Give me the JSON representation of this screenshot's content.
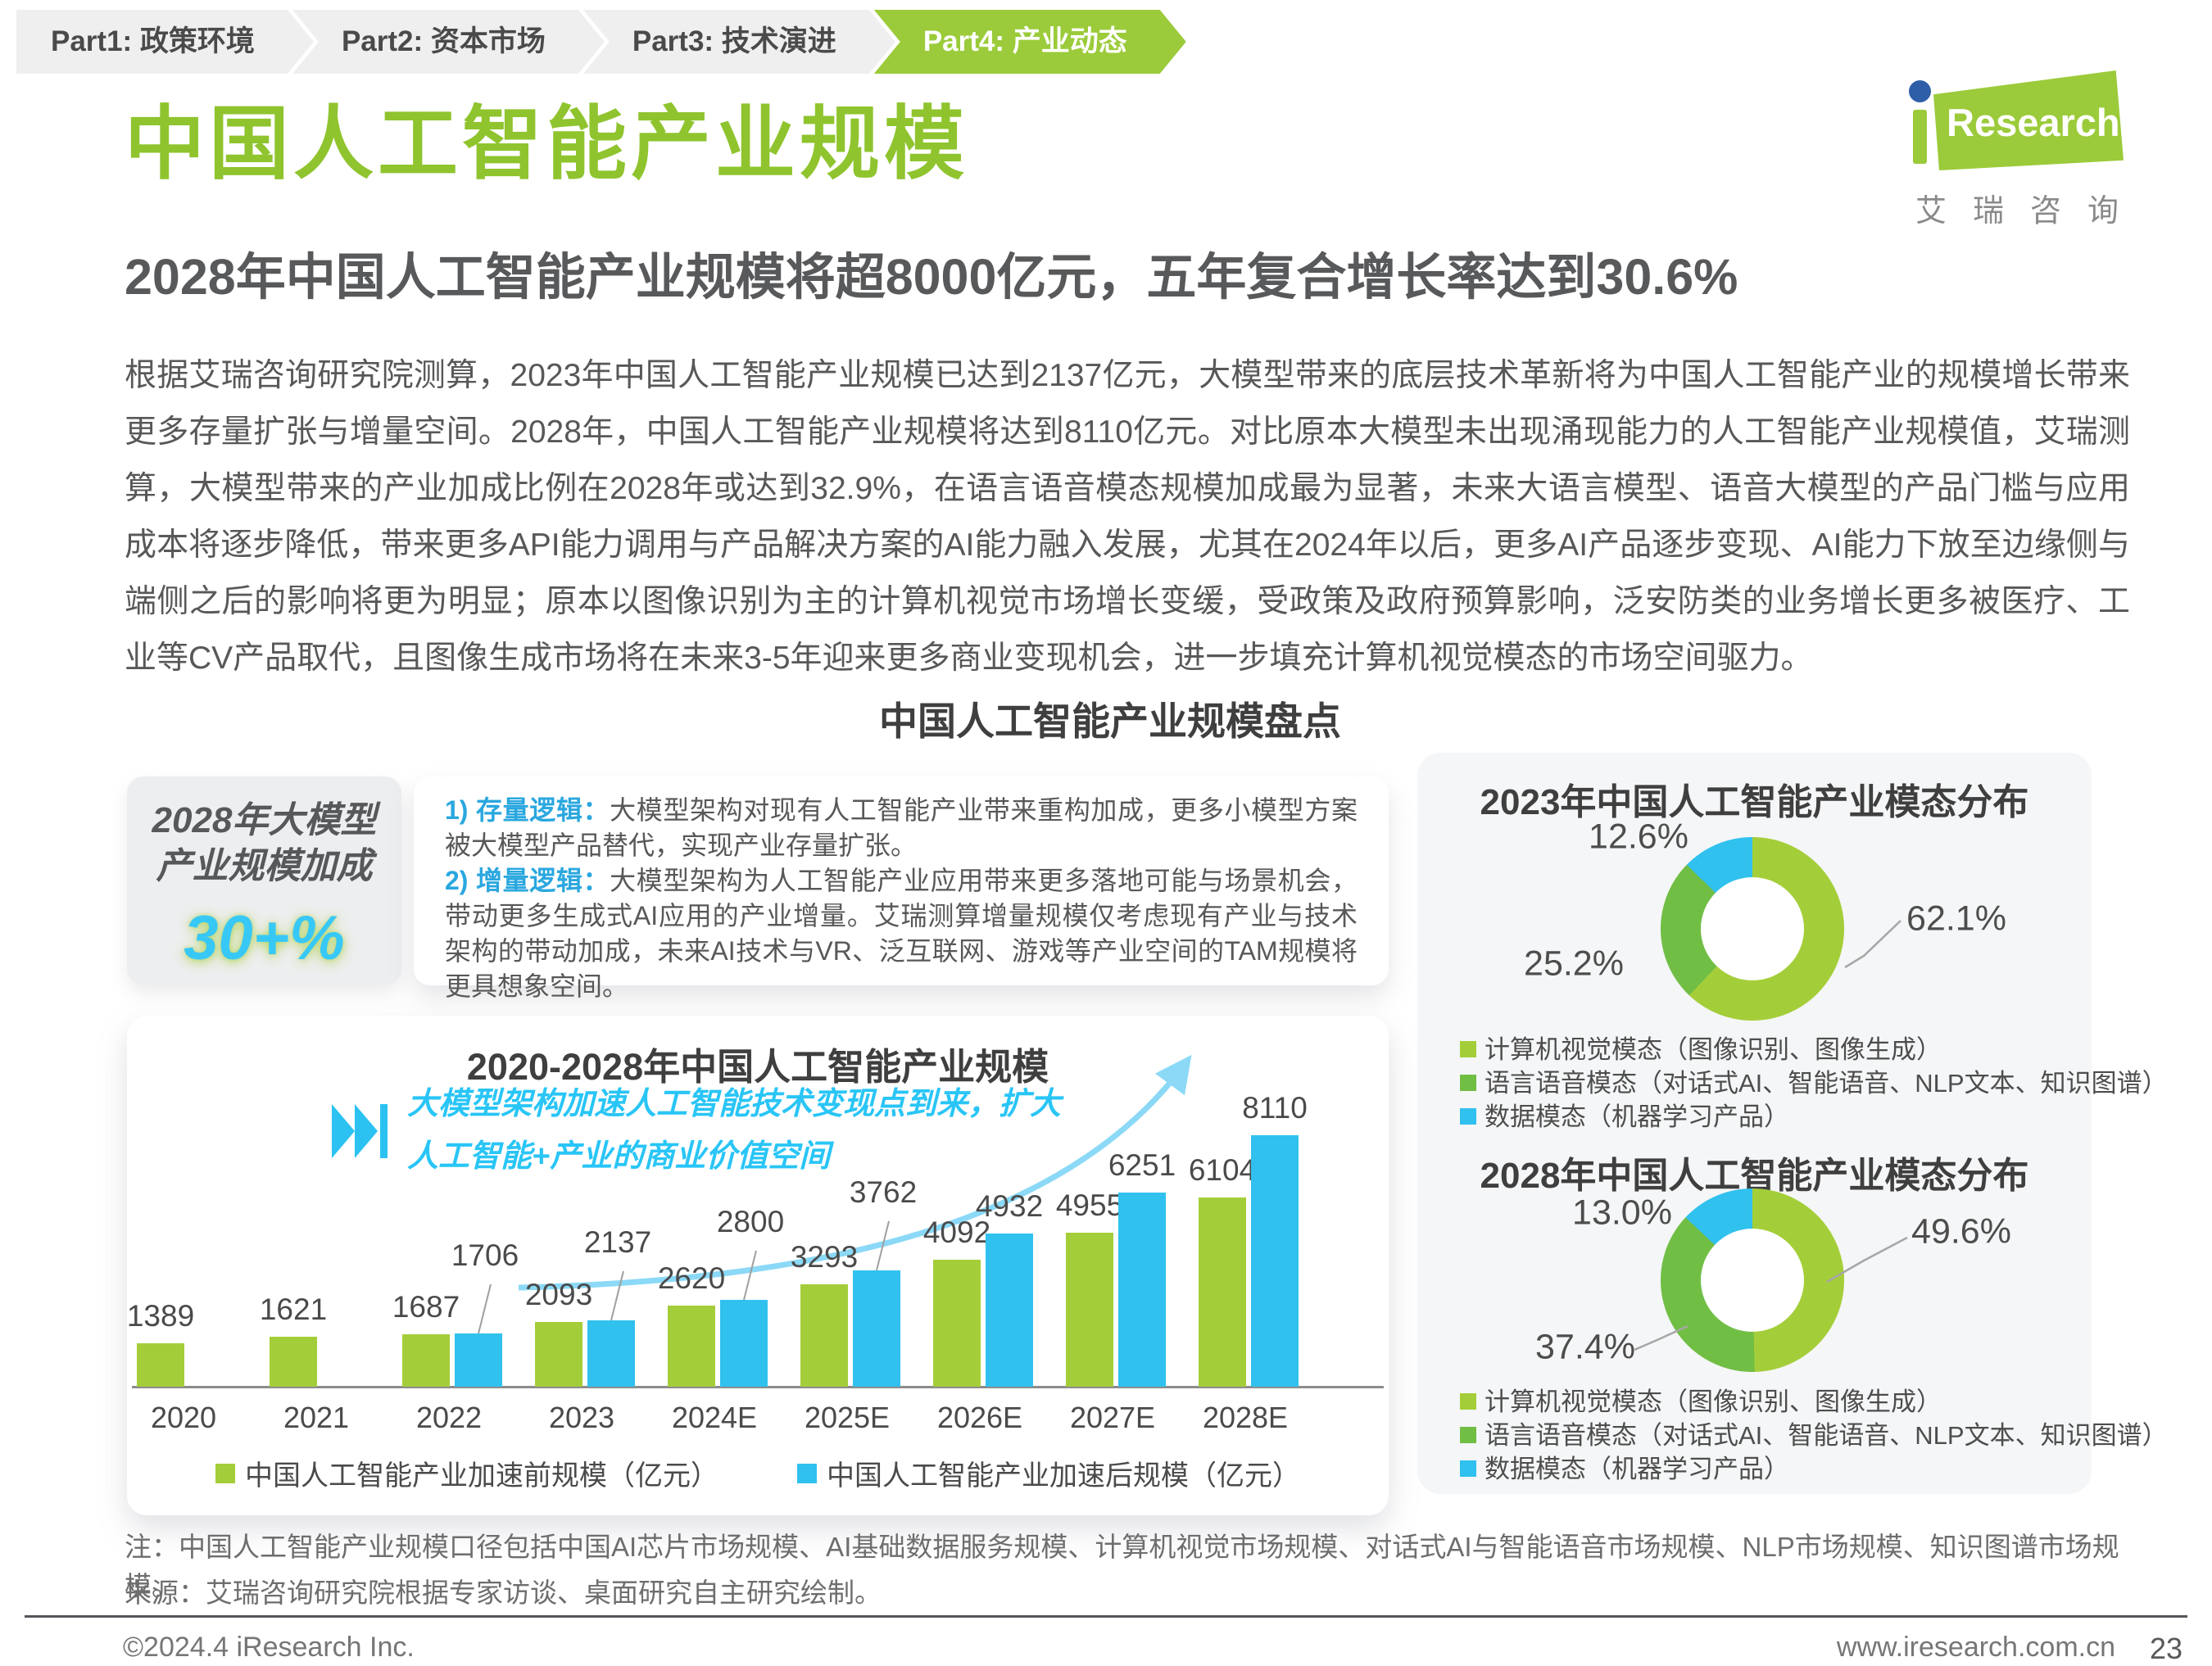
{
  "nav": {
    "items": [
      {
        "label": "Part1: 政策环境",
        "active": false
      },
      {
        "label": "Part2: 资本市场",
        "active": false
      },
      {
        "label": "Part3: 技术演进",
        "active": false
      },
      {
        "label": "Part4: 产业动态",
        "active": true
      }
    ]
  },
  "logo": {
    "research": "Research",
    "cn_name": "艾瑞咨询"
  },
  "header": {
    "title": "中国人工智能产业规模",
    "subtitle": "2028年中国人工智能产业规模将超8000亿元，五年复合增长率达到30.6%"
  },
  "intro": "根据艾瑞咨询研究院测算，2023年中国人工智能产业规模已达到2137亿元，大模型带来的底层技术革新将为中国人工智能产业的规模增长带来更多存量扩张与增量空间。2028年，中国人工智能产业规模将达到8110亿元。对比原本大模型未出现涌现能力的人工智能产业规模值，艾瑞测算，大模型带来的产业加成比例在2028年或达到32.9%，在语言语音模态规模加成最为显著，未来大语言模型、语音大模型的产品门槛与应用成本将逐步降低，带来更多API能力调用与产品解决方案的AI能力融入发展，尤其在2024年以后，更多AI产品逐步变现、AI能力下放至边缘侧与端侧之后的影响将更为明显；原本以图像识别为主的计算机视觉市场增长变缓，受政策及政府预算影响，泛安防类的业务增长更多被医疗、工业等CV产品取代，且图像生成市场将在未来3-5年迎来更多商业变现机会，进一步填充计算机视觉模态的市场空间驱力。",
  "section_title": "中国人工智能产业规模盘点",
  "highlight_card": {
    "line1": "2028年大模型",
    "line2": "产业规模加成",
    "value": "30+%"
  },
  "logic_card": {
    "items": [
      {
        "label": "1) 存量逻辑：",
        "text": "大模型架构对现有人工智能产业带来重构加成，更多小模型方案被大模型产品替代，实现产业存量扩张。"
      },
      {
        "label": "2) 增量逻辑：",
        "text": "大模型架构为人工智能产业应用带来更多落地可能与场景机会，带动更多生成式AI应用的产业增量。艾瑞测算增量规模仅考虑现有产业与技术架构的带动加成，未来AI技术与VR、泛互联网、游戏等产业空间的TAM规模将更具想象空间。"
      }
    ]
  },
  "chart_data": [
    {
      "type": "bar",
      "title": "2020-2028年中国人工智能产业规模",
      "annotation_lines": [
        "大模型架构加速人工智能技术变现点到来，扩大",
        "人工智能+产业的商业价值空间"
      ],
      "categories": [
        "2020",
        "2021",
        "2022",
        "2023",
        "2024E",
        "2025E",
        "2026E",
        "2027E",
        "2028E"
      ],
      "series": [
        {
          "name": "中国人工智能产业加速前规模（亿元）",
          "color": "#A4CE39",
          "values": [
            1389,
            1621,
            1687,
            2093,
            2620,
            3293,
            4092,
            4955,
            6104
          ]
        },
        {
          "name": "中国人工智能产业加速后规模（亿元）",
          "color": "#30C1EE",
          "values": [
            null,
            null,
            1706,
            2137,
            2800,
            3762,
            4932,
            6251,
            8110
          ]
        }
      ],
      "ylabel": "亿元",
      "ylim": [
        0,
        8110
      ],
      "grid": false,
      "legend_position": "bottom"
    },
    {
      "type": "pie",
      "donut": true,
      "unit": "%",
      "title": "2023年中国人工智能产业模态分布",
      "slices": [
        {
          "label": "计算机视觉模态（图像识别、图像生成）",
          "value": 62.1,
          "display": "62.1%",
          "color": "#A4CE39"
        },
        {
          "label": "语言语音模态（对话式AI、智能语音、NLP文本、知识图谱）",
          "value": 25.2,
          "display": "25.2%",
          "color": "#71BE45"
        },
        {
          "label": "数据模态（机器学习产品）",
          "value": 12.6,
          "display": "12.6%",
          "color": "#30C1EE"
        }
      ]
    },
    {
      "type": "pie",
      "donut": true,
      "unit": "%",
      "title": "2028年中国人工智能产业模态分布",
      "slices": [
        {
          "label": "计算机视觉模态（图像识别、图像生成）",
          "value": 49.6,
          "display": "49.6%",
          "color": "#A4CE39"
        },
        {
          "label": "语言语音模态（对话式AI、智能语音、NLP文本、知识图谱）",
          "value": 37.4,
          "display": "37.4%",
          "color": "#71BE45"
        },
        {
          "label": "数据模态（机器学习产品）",
          "value": 13.0,
          "display": "13.0%",
          "color": "#30C1EE"
        }
      ]
    }
  ],
  "footnote": "注：中国人工智能产业规模口径包括中国AI芯片市场规模、AI基础数据服务规模、计算机视觉市场规模、对话式AI与智能语音市场规模、NLP市场规模、知识图谱市场规模。",
  "source": "来源：艾瑞咨询研究院根据专家访谈、桌面研究自主研究绘制。",
  "footer": {
    "copyright": "©2024.4 iResearch Inc.",
    "url": "www.iresearch.com.cn",
    "page": "23"
  },
  "colors": {
    "brand_green": "#9BCB3A",
    "title_green": "#8FC42E",
    "mid_green": "#71BE45",
    "bar_blue": "#30C1EE",
    "accent_cyan": "#29C5F6",
    "logo_dot_blue": "#2F5EA8"
  }
}
